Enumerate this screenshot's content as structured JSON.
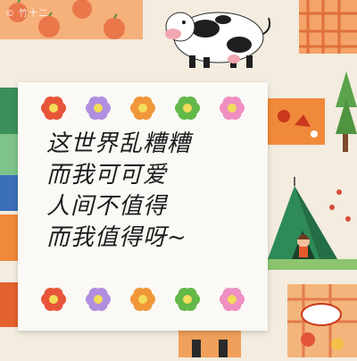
{
  "watermark": "© 竹十二",
  "note": {
    "lines": [
      "这世界乱糟糟",
      "而我可可爱",
      "人间不值得",
      "而我值得呀~"
    ]
  },
  "flowers": {
    "top": [
      "#e8553a",
      "#b08ee0",
      "#f0973a",
      "#63b84a",
      "#ef8fc2"
    ],
    "bottom": [
      "#e8553a",
      "#b08ee0",
      "#f0973a",
      "#63b84a",
      "#ef8fc2"
    ],
    "center": "#f3dc5a"
  },
  "colors": {
    "wall": "#f3ecdf",
    "paper": "#fbf9f5",
    "ink": "#1d1d1d"
  }
}
